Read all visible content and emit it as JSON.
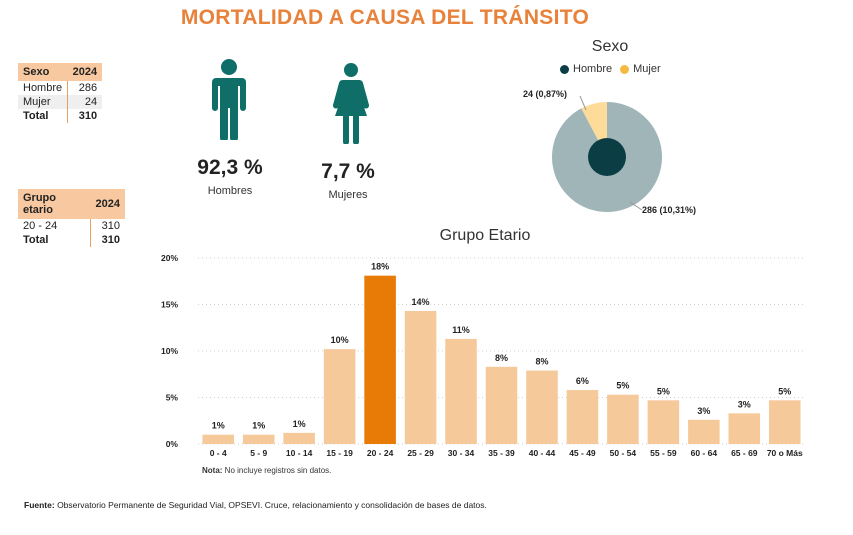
{
  "title": "MORTALIDAD A CAUSA DEL TRÁNSITO",
  "sex_table": {
    "header": [
      "Sexo",
      "2024"
    ],
    "rows": [
      [
        "Hombre",
        "286"
      ],
      [
        "Mujer",
        "24"
      ]
    ],
    "total": [
      "Total",
      "310"
    ]
  },
  "age_table": {
    "header": [
      "Grupo etario",
      "2024"
    ],
    "rows": [
      [
        "20 - 24",
        "310"
      ]
    ],
    "total": [
      "Total",
      "310"
    ]
  },
  "men": {
    "pct": "92,3 %",
    "label": "Hombres",
    "icon": "man-icon",
    "color": "#0f6e68"
  },
  "women": {
    "pct": "7,7 %",
    "label": "Mujeres",
    "icon": "woman-icon",
    "color": "#0f6e68"
  },
  "chart_data": [
    {
      "type": "pie",
      "variant": "donut",
      "title": "Sexo",
      "legend": [
        "Hombre",
        "Mujer"
      ],
      "legend_position": "top",
      "slices": [
        {
          "name": "Hombre",
          "value": 286,
          "label": "286 (10,31%)",
          "color": "#a0b5b8",
          "center_color": "#0b3d45"
        },
        {
          "name": "Mujer",
          "value": 24,
          "label": "24 (0,87%)",
          "color": "#fddc9a"
        }
      ],
      "legend_colors": {
        "Hombre": "#0b3d45",
        "Mujer": "#f5b942"
      }
    },
    {
      "type": "bar",
      "title": "Grupo Etario",
      "categories": [
        "0 - 4",
        "5 - 9",
        "10 - 14",
        "15 - 19",
        "20 - 24",
        "25 - 29",
        "30 - 34",
        "35 - 39",
        "40 - 44",
        "45 - 49",
        "50 - 54",
        "55 - 59",
        "60 - 64",
        "65 - 69",
        "70 o Más"
      ],
      "values": [
        1,
        1,
        1,
        10,
        18,
        14,
        11,
        8,
        8,
        6,
        5,
        5,
        3,
        3,
        5
      ],
      "plot_values": [
        1.0,
        1.0,
        1.2,
        10.2,
        18.1,
        14.3,
        11.3,
        8.3,
        7.9,
        5.8,
        5.3,
        4.7,
        2.6,
        3.3,
        4.7
      ],
      "data_labels": [
        "1%",
        "1%",
        "1%",
        "10%",
        "18%",
        "14%",
        "11%",
        "8%",
        "8%",
        "6%",
        "5%",
        "5%",
        "3%",
        "3%",
        "5%"
      ],
      "highlight": "20 - 24",
      "ylim": [
        0,
        20
      ],
      "yticks": [
        "0%",
        "5%",
        "10%",
        "15%",
        "20%"
      ],
      "grid": true,
      "colors": {
        "bar": "#f6c99b",
        "highlight": "#e87a06"
      }
    }
  ],
  "note": {
    "label": "Nota:",
    "text": " No incluye registros sin datos."
  },
  "source": {
    "label": "Fuente:",
    "text": " Observatorio Permanente de Seguridad Vial, OPSEVI. Cruce, relacionamiento y consolidación de bases de datos."
  }
}
